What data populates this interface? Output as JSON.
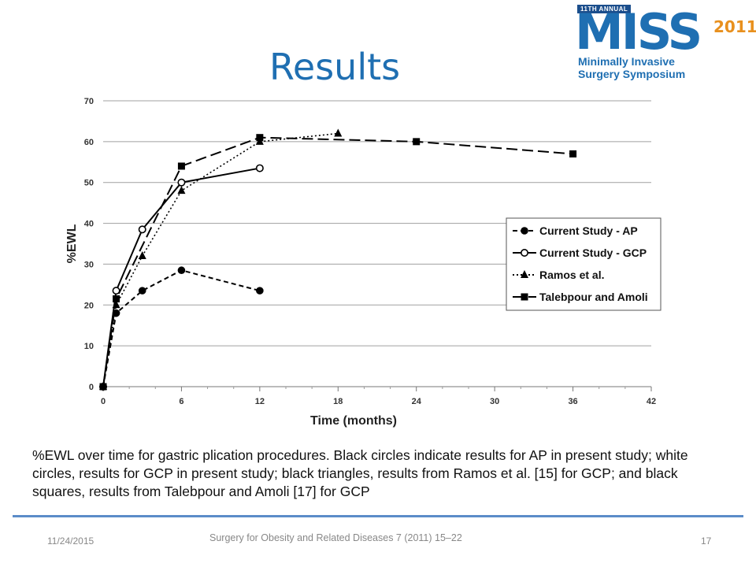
{
  "slide": {
    "title": "Results",
    "caption": "%EWL over time for gastric plication procedures. Black circles indicate results for AP in present study; white circles, results for GCP in present study; black triangles, results from Ramos et al. [15] for GCP; and black squares, results from Talebpour and Amoli [17] for GCP",
    "footer_date": "11/24/2015",
    "footer_source": "Surgery for Obesity and Related Diseases 7 (2011) 15–22",
    "page_number": "17"
  },
  "logo": {
    "tag": "11TH ANNUAL",
    "name": "MISS",
    "year": "2011",
    "line1": "Minimally Invasive",
    "line2": "Surgery Symposium"
  },
  "chart_data": {
    "type": "line",
    "xlabel": "Time (months)",
    "ylabel": "%EWL",
    "xlim": [
      0,
      42
    ],
    "ylim": [
      0,
      70
    ],
    "xticks": [
      0,
      6,
      12,
      18,
      24,
      30,
      36,
      42
    ],
    "yticks": [
      0,
      10,
      20,
      30,
      40,
      50,
      60,
      70
    ],
    "grid": "horizontal",
    "legend_position": "right",
    "series": [
      {
        "name": "Current Study - AP",
        "marker": "filled-circle",
        "dash": "short-dash",
        "points": [
          [
            0,
            0
          ],
          [
            1,
            18
          ],
          [
            3,
            23.5
          ],
          [
            6,
            28.5
          ],
          [
            12,
            23.5
          ]
        ]
      },
      {
        "name": "Current Study - GCP",
        "marker": "open-circle",
        "dash": "solid",
        "points": [
          [
            0,
            0
          ],
          [
            1,
            23.5
          ],
          [
            3,
            38.5
          ],
          [
            6,
            50
          ],
          [
            12,
            53.5
          ]
        ]
      },
      {
        "name": "Ramos et al.",
        "marker": "filled-triangle",
        "dash": "dotted",
        "points": [
          [
            0,
            0
          ],
          [
            1,
            20
          ],
          [
            3,
            32
          ],
          [
            6,
            48
          ],
          [
            12,
            60
          ],
          [
            18,
            62
          ]
        ]
      },
      {
        "name": "Talebpour and Amoli",
        "marker": "filled-square",
        "dash": "long-dash",
        "points": [
          [
            0,
            0
          ],
          [
            1,
            21.5
          ],
          [
            6,
            54
          ],
          [
            12,
            61
          ],
          [
            24,
            60
          ],
          [
            36,
            57
          ]
        ]
      }
    ]
  }
}
